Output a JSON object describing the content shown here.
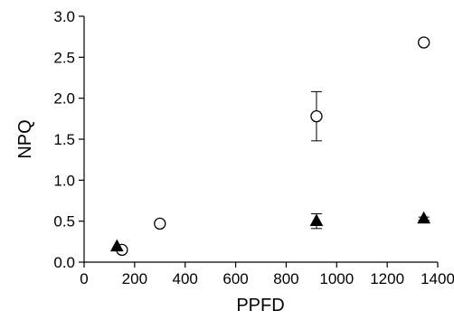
{
  "chart_data": {
    "type": "scatter",
    "xlabel": "PPFD",
    "ylabel": "NPQ",
    "xlim": [
      0,
      1400
    ],
    "ylim": [
      0,
      3.0
    ],
    "xticks": [
      "0",
      "200",
      "400",
      "600",
      "800",
      "1000",
      "1200",
      "1400"
    ],
    "yticks": [
      "0.0",
      "0.5",
      "1.0",
      "1.5",
      "2.0",
      "2.5",
      "3.0"
    ],
    "grid": false,
    "series": [
      {
        "marker": "circle-open",
        "color": "#000000",
        "points": [
          {
            "x": 150,
            "y": 0.15,
            "err": 0
          },
          {
            "x": 300,
            "y": 0.47,
            "err": 0
          },
          {
            "x": 920,
            "y": 1.78,
            "err": 0.3
          },
          {
            "x": 1345,
            "y": 2.68,
            "err": 0.03
          }
        ]
      },
      {
        "marker": "triangle-filled",
        "color": "#000000",
        "points": [
          {
            "x": 130,
            "y": 0.19,
            "err": 0
          },
          {
            "x": 920,
            "y": 0.5,
            "err": 0.09
          },
          {
            "x": 1345,
            "y": 0.53,
            "err": 0.02
          }
        ]
      }
    ]
  }
}
